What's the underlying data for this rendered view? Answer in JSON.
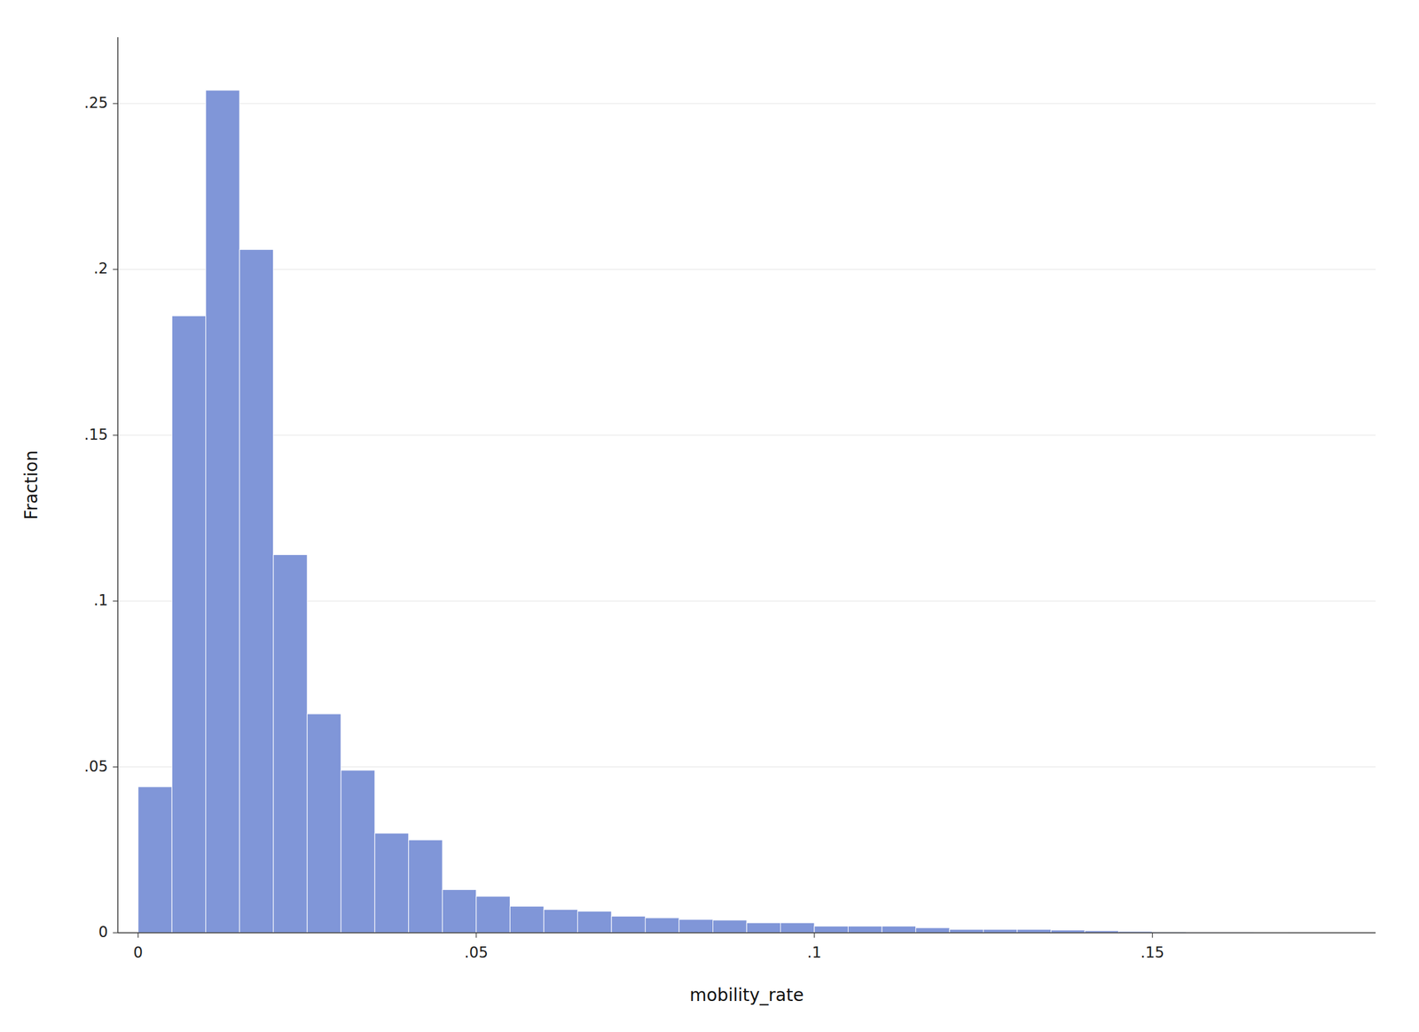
{
  "chart_data": {
    "type": "histogram",
    "xlabel": "mobility_rate",
    "ylabel": "Fraction",
    "color": "#8096D8",
    "grid": true,
    "xlim": [
      -0.003,
      0.183
    ],
    "ylim": [
      0,
      0.27
    ],
    "xticks": [
      0,
      {
        "value": 0.05,
        "label": ".05"
      },
      {
        "value": 0.1,
        "label": ".1"
      },
      {
        "value": 0.15,
        "label": ".15"
      }
    ],
    "yticks": [
      0,
      {
        "value": 0.05,
        "label": ".05"
      },
      {
        "value": 0.1,
        "label": ".1"
      },
      {
        "value": 0.15,
        "label": ".15"
      },
      {
        "value": 0.2,
        "label": ".2"
      },
      {
        "value": 0.25,
        "label": ".25"
      }
    ],
    "bins": [
      0.0,
      0.005,
      0.01,
      0.015,
      0.02,
      0.025,
      0.03,
      0.035,
      0.04,
      0.045,
      0.05,
      0.055,
      0.06,
      0.065,
      0.07,
      0.075,
      0.08,
      0.085,
      0.09,
      0.095,
      0.1,
      0.105,
      0.11,
      0.115,
      0.12,
      0.125,
      0.13,
      0.135,
      0.14,
      0.145,
      0.15,
      0.155,
      0.16,
      0.165,
      0.17,
      0.175
    ],
    "values": [
      0.044,
      0.186,
      0.254,
      0.206,
      0.114,
      0.066,
      0.049,
      0.03,
      0.028,
      0.013,
      0.011,
      0.008,
      0.007,
      0.0065,
      0.005,
      0.0045,
      0.004,
      0.0038,
      0.003,
      0.003,
      0.002,
      0.002,
      0.002,
      0.0015,
      0.001,
      0.001,
      0.001,
      0.0008,
      0.0006,
      0.0004,
      0.0003,
      0.0002,
      0.0002,
      0.0001,
      5e-05
    ]
  }
}
